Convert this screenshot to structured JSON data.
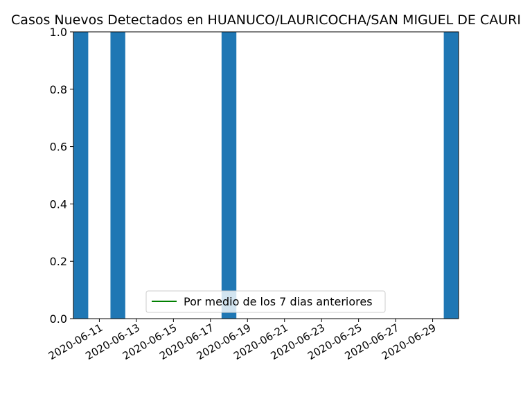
{
  "chart_data": {
    "type": "bar",
    "title": "Casos Nuevos Detectados en HUANUCO/LAURICOCHA/SAN MIGUEL DE CAURI",
    "xlabel": "",
    "ylabel": "",
    "x_range": [
      "2020-06-10",
      "2020-06-30"
    ],
    "ylim": [
      0,
      1.0
    ],
    "y_ticks": [
      "0.0",
      "0.2",
      "0.4",
      "0.6",
      "0.8",
      "1.0"
    ],
    "x_ticks": [
      "2020-06-11",
      "2020-06-13",
      "2020-06-15",
      "2020-06-17",
      "2020-06-19",
      "2020-06-21",
      "2020-06-23",
      "2020-06-25",
      "2020-06-27",
      "2020-06-29"
    ],
    "bars": [
      {
        "date": "2020-06-10",
        "value": 1
      },
      {
        "date": "2020-06-12",
        "value": 1
      },
      {
        "date": "2020-06-18",
        "value": 1
      },
      {
        "date": "2020-06-30",
        "value": 1
      }
    ],
    "series": [
      {
        "name": "Por medio de los 7 dias anteriores",
        "color": "#008000",
        "values": []
      }
    ],
    "bar_color": "#1f77b4",
    "legend_position": "lower center",
    "grid": false
  }
}
